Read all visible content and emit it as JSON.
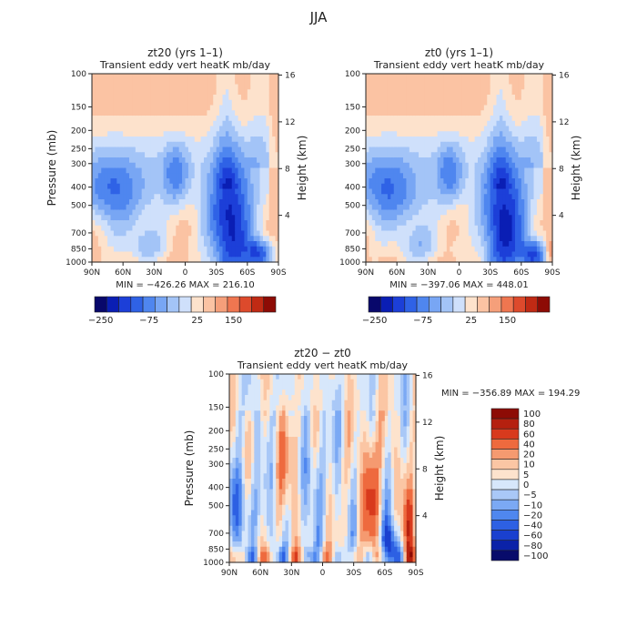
{
  "page_title": "JJA",
  "chart_data": [
    {
      "id": "panel-a",
      "type": "heatmap",
      "title": "zt20 (yrs 1–1)",
      "subtitle": "Transient eddy vert heatK mb/day",
      "ylabel": "Pressure (mb)",
      "y2label": "Height (km)",
      "x_ticks": [
        "90N",
        "60N",
        "30N",
        "0",
        "30S",
        "60S",
        "90S"
      ],
      "p_ticks": [
        100,
        150,
        200,
        250,
        300,
        400,
        500,
        700,
        850,
        1000
      ],
      "p_range": [
        100,
        1000
      ],
      "h_ticks": [
        4,
        8,
        12,
        16
      ],
      "stats": "MIN = −426.26   MAX = 216.10",
      "min": -426.26,
      "max": 216.1,
      "colorbar_labels": [
        "−250",
        "−75",
        "25",
        "150"
      ],
      "colorbar_label_index": [
        0,
        4,
        8,
        11
      ]
    },
    {
      "id": "panel-b",
      "type": "heatmap",
      "title": "zt0 (yrs 1–1)",
      "subtitle": "Transient eddy vert heatK mb/day",
      "y2label": "Height (km)",
      "x_ticks": [
        "90N",
        "60N",
        "30N",
        "0",
        "30S",
        "60S",
        "90S"
      ],
      "p_ticks": [
        100,
        150,
        200,
        250,
        300,
        400,
        500,
        700,
        850,
        1000
      ],
      "p_range": [
        100,
        1000
      ],
      "h_ticks": [
        4,
        8,
        12,
        16
      ],
      "stats": "MIN = −397.06   MAX = 448.01",
      "min": -397.06,
      "max": 448.01,
      "colorbar_labels": [
        "−250",
        "−75",
        "25",
        "150"
      ],
      "colorbar_label_index": [
        0,
        4,
        8,
        11
      ]
    },
    {
      "id": "panel-diff",
      "type": "heatmap",
      "title": "zt20 − zt0",
      "subtitle": "Transient eddy vert heatK mb/day",
      "ylabel": "Pressure (mb)",
      "y2label": "Height (km)",
      "x_ticks": [
        "90N",
        "60N",
        "30N",
        "0",
        "30S",
        "60S",
        "90S"
      ],
      "p_ticks": [
        100,
        150,
        200,
        250,
        300,
        400,
        500,
        700,
        850,
        1000
      ],
      "p_range": [
        100,
        1000
      ],
      "h_ticks": [
        4,
        8,
        12,
        16
      ],
      "stats": "MIN = −356.89   MAX = 194.29",
      "min": -356.89,
      "max": 194.29,
      "colorbar_levels": [
        "100",
        "80",
        "60",
        "40",
        "20",
        "10",
        "5",
        "0",
        "−5",
        "−10",
        "−20",
        "−40",
        "−60",
        "−80",
        "−100"
      ]
    }
  ],
  "colors": {
    "sequential_top": [
      "#08086b",
      "#0a1eb4",
      "#1c3fd8",
      "#2f62e6",
      "#4f86ef",
      "#78a6f4",
      "#a3c4f7",
      "#cfe0fb",
      "#fde2cc",
      "#fbc3a3",
      "#f59f7a",
      "#ef7650",
      "#dd4a2c",
      "#c02a14",
      "#8d0b05"
    ],
    "diverging_diff": [
      "#8d0b05",
      "#b5200f",
      "#d83a1d",
      "#ee6a3e",
      "#f59a70",
      "#fbc6a4",
      "#fde3cd",
      "#d7e7fb",
      "#a9c8f7",
      "#7ba9f4",
      "#4f87ef",
      "#2d60e3",
      "#1a40cf",
      "#0b22a8",
      "#080b6b"
    ]
  }
}
